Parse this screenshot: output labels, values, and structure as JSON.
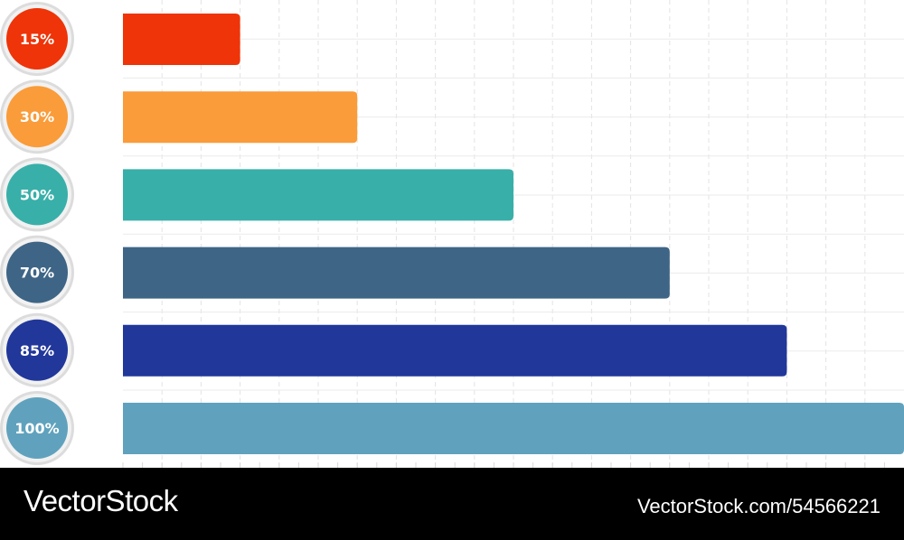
{
  "chart_data": {
    "type": "bar",
    "orientation": "horizontal",
    "categories": [
      "15%",
      "30%",
      "50%",
      "70%",
      "85%",
      "100%"
    ],
    "values": [
      15,
      30,
      50,
      70,
      85,
      100
    ],
    "colors": [
      "#EE3408",
      "#FA9C3A",
      "#39AFA9",
      "#3E6586",
      "#21379A",
      "#60A2BD"
    ],
    "badge_colors": [
      "#EE3408",
      "#FA9C3A",
      "#39AFA9",
      "#3E6586",
      "#21379A",
      "#60A2BD"
    ],
    "xlim": [
      0,
      100
    ],
    "grid": true,
    "legend": "none",
    "title": "",
    "xlabel": "",
    "ylabel": ""
  },
  "footer": {
    "brand": "VectorStock",
    "image_id": "VectorStock.com/54566221"
  }
}
